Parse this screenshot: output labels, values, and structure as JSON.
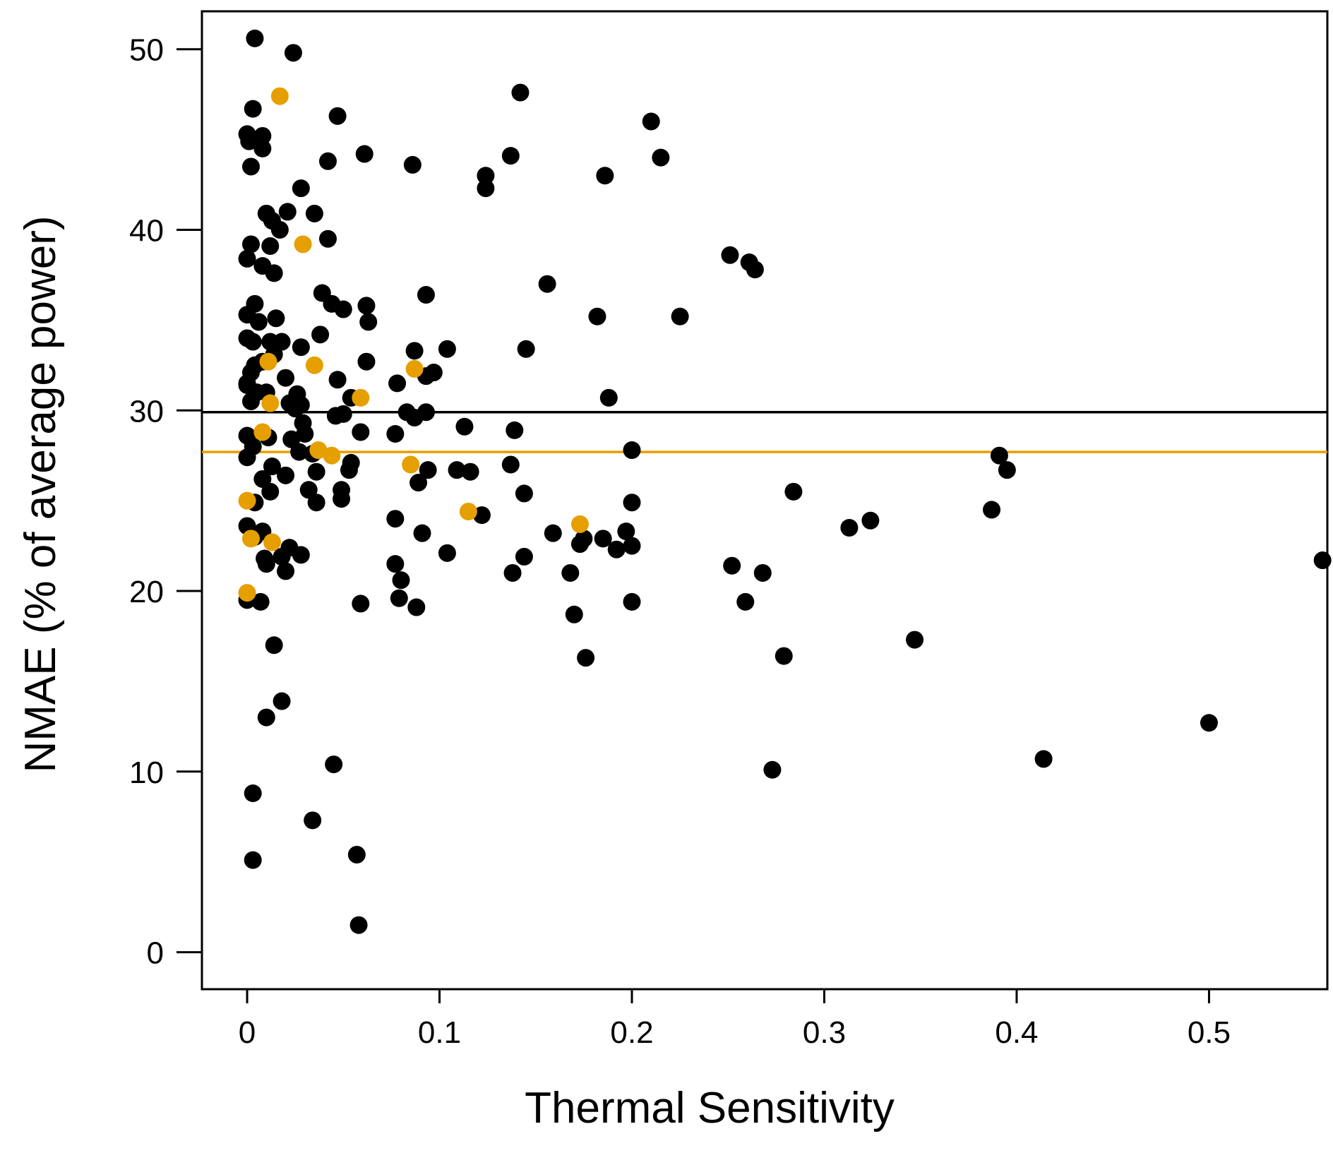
{
  "colors": {
    "series_black": "#000000",
    "series_orange": "#e69f00",
    "axis": "#000000",
    "background": "#ffffff"
  },
  "chart_data": {
    "type": "scatter",
    "title": "",
    "xlabel": "Thermal Sensitivity",
    "ylabel": "NMAE (% of average power)",
    "xlim": [
      -0.0235,
      0.5615
    ],
    "ylim": [
      -2.05,
      52.1
    ],
    "x_ticks": [
      0,
      0.1,
      0.2,
      0.3,
      0.4,
      0.5
    ],
    "x_tick_labels": [
      "0",
      "0.1",
      "0.2",
      "0.3",
      "0.4",
      "0.5"
    ],
    "y_ticks": [
      0,
      10,
      20,
      30,
      40,
      50
    ],
    "y_tick_labels": [
      "0",
      "10",
      "20",
      "30",
      "40",
      "50"
    ],
    "grid": false,
    "hlines": [
      {
        "name": "black-mean-line",
        "y": 29.9,
        "color": "#000000"
      },
      {
        "name": "orange-mean-line",
        "y": 27.7,
        "color": "#e69f00"
      }
    ],
    "series": [
      {
        "name": "black",
        "color": "#000000",
        "points": [
          [
            0.004,
            50.6
          ],
          [
            0.024,
            49.8
          ],
          [
            0.003,
            46.7
          ],
          [
            0.047,
            46.3
          ],
          [
            0.0,
            45.3
          ],
          [
            0.008,
            45.2
          ],
          [
            0.001,
            44.9
          ],
          [
            0.008,
            44.5
          ],
          [
            0.002,
            43.5
          ],
          [
            0.042,
            43.8
          ],
          [
            0.061,
            44.2
          ],
          [
            0.086,
            43.6
          ],
          [
            0.028,
            42.3
          ],
          [
            0.01,
            40.9
          ],
          [
            0.021,
            41.0
          ],
          [
            0.035,
            40.9
          ],
          [
            0.013,
            40.5
          ],
          [
            0.017,
            40.0
          ],
          [
            0.002,
            39.2
          ],
          [
            0.012,
            39.1
          ],
          [
            0.042,
            39.5
          ],
          [
            0.0,
            38.4
          ],
          [
            0.008,
            38.0
          ],
          [
            0.014,
            37.6
          ],
          [
            0.039,
            36.5
          ],
          [
            0.004,
            35.9
          ],
          [
            0.044,
            35.9
          ],
          [
            0.05,
            35.6
          ],
          [
            0.0,
            35.3
          ],
          [
            0.015,
            35.1
          ],
          [
            0.006,
            34.9
          ],
          [
            0.038,
            34.2
          ],
          [
            0.0,
            34.0
          ],
          [
            0.003,
            33.8
          ],
          [
            0.012,
            33.8
          ],
          [
            0.018,
            33.8
          ],
          [
            0.028,
            33.5
          ],
          [
            0.014,
            33.1
          ],
          [
            0.004,
            32.5
          ],
          [
            0.008,
            32.7
          ],
          [
            0.002,
            32.1
          ],
          [
            0.0,
            31.5
          ],
          [
            0.02,
            31.8
          ],
          [
            0.047,
            31.7
          ],
          [
            0.0,
            31.4
          ],
          [
            0.005,
            31.0
          ],
          [
            0.01,
            31.0
          ],
          [
            0.026,
            30.9
          ],
          [
            0.002,
            30.5
          ],
          [
            0.022,
            30.4
          ],
          [
            0.028,
            30.3
          ],
          [
            0.054,
            30.7
          ],
          [
            0.025,
            30.1
          ],
          [
            0.05,
            29.8
          ],
          [
            0.046,
            29.7
          ],
          [
            0.029,
            29.3
          ],
          [
            0.0,
            28.6
          ],
          [
            0.003,
            28.0
          ],
          [
            0.011,
            28.5
          ],
          [
            0.023,
            28.4
          ],
          [
            0.03,
            28.7
          ],
          [
            0.059,
            28.8
          ],
          [
            0.0,
            27.4
          ],
          [
            0.027,
            27.7
          ],
          [
            0.034,
            27.6
          ],
          [
            0.013,
            26.9
          ],
          [
            0.036,
            26.6
          ],
          [
            0.054,
            27.1
          ],
          [
            0.053,
            26.7
          ],
          [
            0.008,
            26.2
          ],
          [
            0.02,
            26.4
          ],
          [
            0.012,
            25.5
          ],
          [
            0.032,
            25.6
          ],
          [
            0.049,
            25.6
          ],
          [
            0.049,
            25.1
          ],
          [
            0.036,
            24.9
          ],
          [
            0.004,
            24.9
          ],
          [
            0.0,
            23.6
          ],
          [
            0.008,
            23.3
          ],
          [
            0.004,
            23.0
          ],
          [
            0.009,
            21.8
          ],
          [
            0.01,
            21.5
          ],
          [
            0.018,
            21.9
          ],
          [
            0.022,
            22.4
          ],
          [
            0.028,
            22.0
          ],
          [
            0.02,
            21.1
          ],
          [
            0.0,
            19.5
          ],
          [
            0.007,
            19.4
          ],
          [
            0.014,
            17.0
          ],
          [
            0.018,
            13.9
          ],
          [
            0.01,
            13.0
          ],
          [
            0.045,
            10.4
          ],
          [
            0.003,
            8.8
          ],
          [
            0.034,
            7.3
          ],
          [
            0.003,
            5.1
          ],
          [
            0.057,
            5.4
          ],
          [
            0.058,
            1.5
          ],
          [
            0.062,
            35.8
          ],
          [
            0.063,
            34.9
          ],
          [
            0.062,
            32.7
          ],
          [
            0.078,
            31.5
          ],
          [
            0.093,
            36.4
          ],
          [
            0.087,
            33.3
          ],
          [
            0.104,
            33.4
          ],
          [
            0.093,
            31.9
          ],
          [
            0.097,
            32.1
          ],
          [
            0.083,
            29.9
          ],
          [
            0.087,
            29.6
          ],
          [
            0.093,
            29.9
          ],
          [
            0.077,
            28.7
          ],
          [
            0.094,
            26.7
          ],
          [
            0.089,
            26.0
          ],
          [
            0.109,
            26.7
          ],
          [
            0.116,
            26.6
          ],
          [
            0.113,
            29.1
          ],
          [
            0.077,
            24.0
          ],
          [
            0.091,
            23.2
          ],
          [
            0.104,
            22.1
          ],
          [
            0.122,
            24.2
          ],
          [
            0.077,
            21.5
          ],
          [
            0.08,
            20.6
          ],
          [
            0.079,
            19.6
          ],
          [
            0.088,
            19.1
          ],
          [
            0.059,
            19.3
          ],
          [
            0.124,
            43.0
          ],
          [
            0.124,
            42.3
          ],
          [
            0.142,
            47.6
          ],
          [
            0.137,
            44.1
          ],
          [
            0.156,
            37.0
          ],
          [
            0.145,
            33.4
          ],
          [
            0.139,
            28.9
          ],
          [
            0.137,
            27.0
          ],
          [
            0.144,
            25.4
          ],
          [
            0.159,
            23.2
          ],
          [
            0.144,
            21.9
          ],
          [
            0.138,
            21.0
          ],
          [
            0.186,
            43.0
          ],
          [
            0.182,
            35.2
          ],
          [
            0.188,
            30.7
          ],
          [
            0.2,
            27.8
          ],
          [
            0.2,
            24.9
          ],
          [
            0.197,
            23.3
          ],
          [
            0.185,
            22.9
          ],
          [
            0.175,
            22.9
          ],
          [
            0.173,
            22.6
          ],
          [
            0.192,
            22.3
          ],
          [
            0.2,
            22.5
          ],
          [
            0.168,
            21.0
          ],
          [
            0.17,
            18.7
          ],
          [
            0.176,
            16.3
          ],
          [
            0.2,
            19.4
          ],
          [
            0.21,
            46.0
          ],
          [
            0.215,
            44.0
          ],
          [
            0.225,
            35.2
          ],
          [
            0.251,
            38.6
          ],
          [
            0.261,
            38.2
          ],
          [
            0.264,
            37.8
          ],
          [
            0.284,
            25.5
          ],
          [
            0.252,
            21.4
          ],
          [
            0.268,
            21.0
          ],
          [
            0.259,
            19.4
          ],
          [
            0.279,
            16.4
          ],
          [
            0.273,
            10.1
          ],
          [
            0.313,
            23.5
          ],
          [
            0.324,
            23.9
          ],
          [
            0.347,
            17.3
          ],
          [
            0.391,
            27.5
          ],
          [
            0.395,
            26.7
          ],
          [
            0.387,
            24.5
          ],
          [
            0.414,
            10.7
          ],
          [
            0.5,
            12.7
          ],
          [
            0.559,
            21.7
          ]
        ]
      },
      {
        "name": "orange",
        "color": "#e69f00",
        "points": [
          [
            0.017,
            47.4
          ],
          [
            0.029,
            39.2
          ],
          [
            0.011,
            32.7
          ],
          [
            0.035,
            32.5
          ],
          [
            0.087,
            32.3
          ],
          [
            0.059,
            30.7
          ],
          [
            0.012,
            30.4
          ],
          [
            0.008,
            28.8
          ],
          [
            0.037,
            27.8
          ],
          [
            0.044,
            27.5
          ],
          [
            0.085,
            27.0
          ],
          [
            0.0,
            25.0
          ],
          [
            0.115,
            24.4
          ],
          [
            0.173,
            23.7
          ],
          [
            0.002,
            22.9
          ],
          [
            0.013,
            22.7
          ],
          [
            0.0,
            19.9
          ]
        ]
      }
    ]
  }
}
